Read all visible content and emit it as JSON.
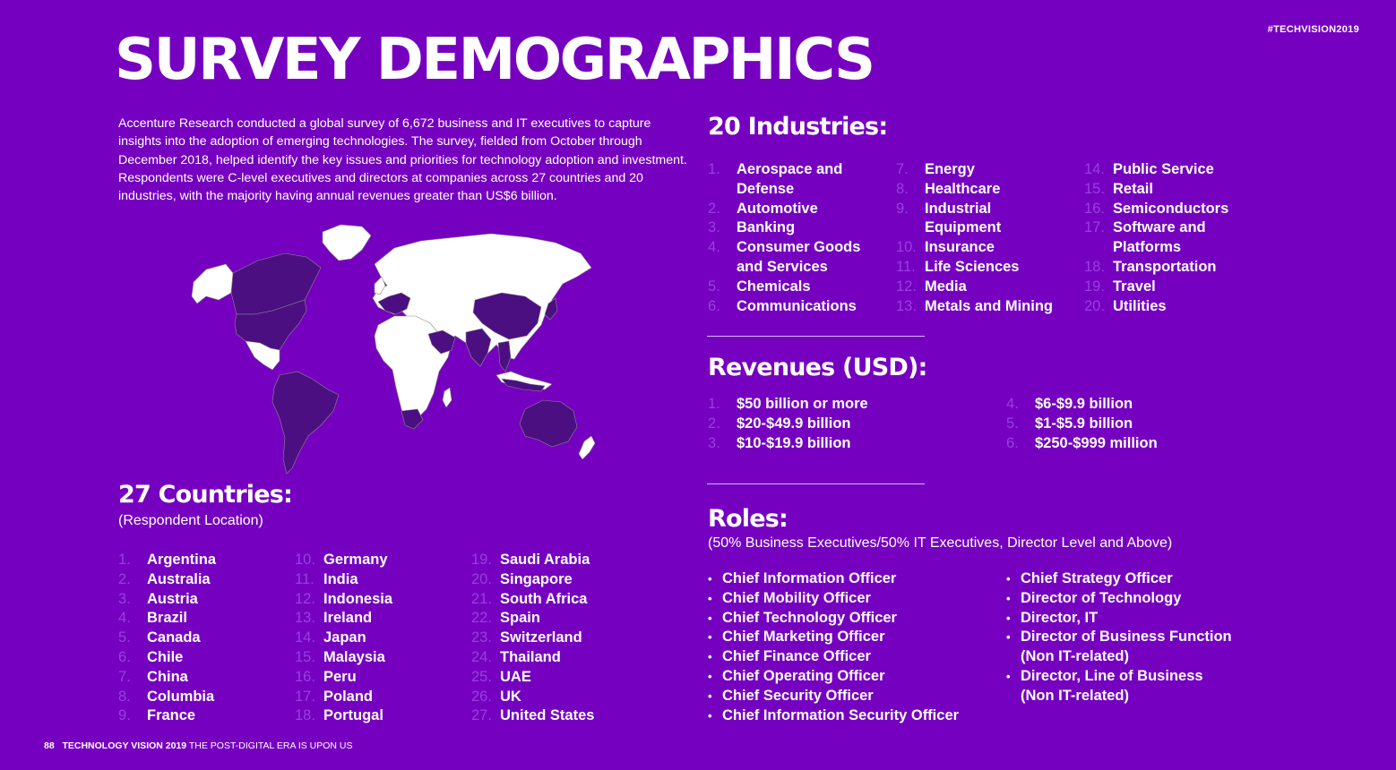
{
  "title": "SURVEY DEMOGRAPHICS",
  "hashtag": "#TECHVISION2019",
  "intro": "Accenture Research conducted a global survey of 6,672 business and IT executives to capture insights into the adoption of emerging technologies. The survey, fielded from October through December 2018, helped identify the key issues and priorities for technology adoption and investment. Respondents were C-level executives and directors at companies across 27 countries and 20 industries, with the majority having annual revenues greater than US$6 billion.",
  "industries": {
    "title": "20 Industries:",
    "col1": [
      "Aerospace and Defense",
      "Automotive",
      "Banking",
      "Consumer Goods and Services",
      "Chemicals",
      "Communications"
    ],
    "col2": [
      "Energy",
      "Healthcare",
      "Industrial Equipment",
      "Insurance",
      "Life Sciences",
      "Media",
      "Metals and Mining"
    ],
    "col3": [
      "Public Service",
      "Retail",
      "Semiconductors",
      "Software and Platforms",
      "Transportation",
      "Travel",
      "Utilities"
    ]
  },
  "revenues": {
    "title": "Revenues (USD):",
    "col1": [
      "$50 billion or more",
      "$20-$49.9 billion",
      "$10-$19.9 billion"
    ],
    "col2": [
      "$6-$9.9 billion",
      "$1-$5.9 billion",
      "$250-$999 million"
    ]
  },
  "roles": {
    "title": "Roles:",
    "subtitle": "(50% Business Executives/50% IT Executives, Director Level and Above)",
    "col1": [
      "Chief Information Officer",
      "Chief Mobility Officer",
      "Chief Technology Officer",
      "Chief Marketing Officer",
      "Chief Finance Officer",
      "Chief Operating Officer",
      "Chief Security Officer",
      "Chief Information Security Officer"
    ],
    "col2": [
      "Chief Strategy Officer",
      "Director of Technology",
      "Director, IT",
      "Director of Business Function (Non IT-related)",
      "Director, Line of Business (Non IT-related)"
    ]
  },
  "countries": {
    "title": "27 Countries:",
    "subtitle": "(Respondent Location)",
    "col1": [
      "Argentina",
      "Australia",
      "Austria",
      "Brazil",
      "Canada",
      "Chile",
      "China",
      "Columbia",
      "France"
    ],
    "col2": [
      "Germany",
      "India",
      "Indonesia",
      "Ireland",
      "Japan",
      "Malaysia",
      "Peru",
      "Poland",
      "Portugal"
    ],
    "col3": [
      "Saudi Arabia",
      "Singapore",
      "South Africa",
      "Spain",
      "Switzerland",
      "Thailand",
      "UAE",
      "UK",
      "United States"
    ]
  },
  "footer": {
    "page": "88",
    "brand": "TECHNOLOGY VISION 2019",
    "tagline": "THE POST-DIGITAL ERA IS UPON US"
  },
  "map": {
    "highlight_color": "#4b0f82",
    "land_color": "#ffffff",
    "border_color": "#8a8a8a"
  }
}
